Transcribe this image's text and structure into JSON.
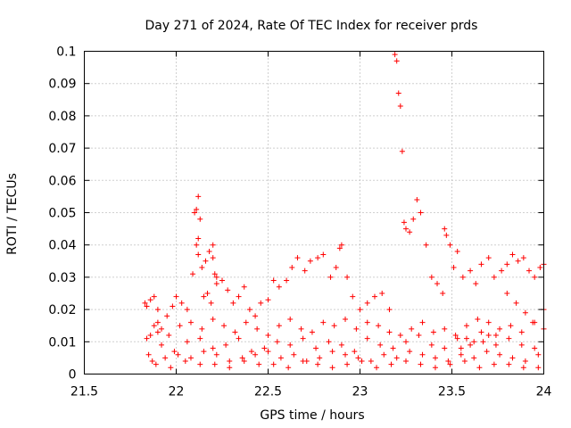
{
  "chart_data": {
    "type": "scatter",
    "title": "Day 271 of 2024, Rate Of TEC Index for receiver prds",
    "xlabel": "GPS time / hours",
    "ylabel": "ROTI / TECUs",
    "xlim": [
      21.5,
      24
    ],
    "ylim": [
      0,
      0.1
    ],
    "xticks": [
      21.5,
      22,
      22.5,
      23,
      23.5,
      24
    ],
    "xtick_labels": [
      "21.5",
      "22",
      "22.5",
      "23",
      "23.5",
      "24"
    ],
    "yticks": [
      0,
      0.01,
      0.02,
      0.03,
      0.04,
      0.05,
      0.06,
      0.07,
      0.08,
      0.09,
      0.1
    ],
    "ytick_labels": [
      "0",
      "0.01",
      "0.02",
      "0.03",
      "0.04",
      "0.05",
      "0.06",
      "0.07",
      "0.08",
      "0.09",
      "0.1"
    ],
    "grid": true,
    "marker": "+",
    "color": "#ff0000",
    "series": [
      {
        "name": "ROTI",
        "x": [
          21.83,
          21.84,
          21.86,
          21.88,
          21.9,
          21.86,
          21.88,
          21.9,
          21.92,
          21.95,
          21.98,
          22.0,
          22.03,
          22.06,
          22.09,
          22.12,
          22.1,
          22.11,
          22.12,
          22.13,
          22.11,
          22.12,
          22.14,
          22.16,
          22.18,
          22.2,
          22.2,
          22.21,
          22.22,
          22.15,
          22.17,
          22.19,
          22.22,
          22.25,
          22.28,
          22.31,
          22.34,
          22.37,
          22.4,
          22.43,
          22.46,
          22.5,
          22.53,
          22.56,
          22.6,
          22.63,
          22.66,
          22.7,
          22.73,
          22.77,
          22.8,
          22.84,
          22.87,
          22.89,
          22.9,
          22.93,
          22.96,
          23.0,
          23.04,
          23.08,
          23.12,
          23.16,
          23.19,
          23.2,
          23.21,
          23.22,
          23.23,
          23.24,
          23.25,
          23.27,
          23.29,
          23.31,
          23.33,
          23.36,
          23.39,
          23.42,
          23.45,
          23.46,
          23.47,
          23.49,
          23.51,
          23.53,
          23.56,
          23.6,
          23.63,
          23.66,
          23.7,
          23.73,
          23.77,
          23.8,
          23.83,
          23.86,
          23.89,
          23.92,
          23.95,
          23.98,
          24.0,
          21.84,
          21.9,
          21.96,
          22.02,
          22.08,
          22.14,
          22.2,
          22.26,
          22.32,
          22.38,
          22.44,
          22.5,
          22.56,
          22.62,
          22.68,
          22.74,
          22.8,
          22.86,
          22.92,
          22.98,
          23.04,
          23.1,
          23.16,
          23.22,
          23.28,
          23.34,
          23.4,
          23.46,
          23.52,
          23.58,
          23.64,
          23.7,
          23.76,
          23.82,
          23.88,
          23.94,
          24.0,
          21.85,
          21.92,
          21.99,
          22.06,
          22.13,
          22.2,
          22.27,
          22.34,
          22.41,
          22.48,
          22.55,
          22.62,
          22.69,
          22.76,
          22.83,
          22.9,
          22.97,
          23.04,
          23.11,
          23.18,
          23.25,
          23.32,
          23.39,
          23.46,
          23.53,
          23.6,
          23.67,
          23.74,
          23.81,
          23.88,
          23.95,
          21.87,
          21.94,
          22.01,
          22.08,
          22.15,
          22.22,
          22.29,
          22.36,
          22.43,
          22.5,
          22.57,
          22.64,
          22.71,
          22.78,
          22.85,
          22.92,
          22.99,
          23.06,
          23.13,
          23.2,
          23.27,
          23.34,
          23.41,
          23.48,
          23.55,
          23.62,
          23.69,
          23.76,
          23.83,
          23.9,
          23.97,
          21.89,
          21.97,
          22.05,
          22.13,
          22.21,
          22.29,
          22.37,
          22.45,
          22.53,
          22.61,
          22.69,
          22.77,
          22.85,
          22.93,
          23.01,
          23.09,
          23.17,
          23.25,
          23.33,
          23.41,
          23.49,
          23.57,
          23.65,
          23.73,
          23.81,
          23.89,
          23.97,
          23.8,
          23.85,
          23.9,
          23.95,
          24.0,
          23.55,
          23.58,
          23.62,
          23.66,
          23.7,
          23.74
        ],
        "y": [
          0.022,
          0.021,
          0.023,
          0.024,
          0.02,
          0.012,
          0.015,
          0.016,
          0.014,
          0.018,
          0.021,
          0.024,
          0.022,
          0.02,
          0.031,
          0.042,
          0.05,
          0.051,
          0.055,
          0.048,
          0.04,
          0.037,
          0.033,
          0.035,
          0.038,
          0.04,
          0.036,
          0.031,
          0.028,
          0.024,
          0.025,
          0.022,
          0.03,
          0.029,
          0.026,
          0.022,
          0.024,
          0.027,
          0.02,
          0.018,
          0.022,
          0.023,
          0.029,
          0.027,
          0.029,
          0.033,
          0.036,
          0.032,
          0.035,
          0.036,
          0.037,
          0.03,
          0.033,
          0.039,
          0.04,
          0.03,
          0.024,
          0.02,
          0.022,
          0.024,
          0.025,
          0.02,
          0.099,
          0.097,
          0.087,
          0.083,
          0.069,
          0.047,
          0.045,
          0.044,
          0.048,
          0.054,
          0.05,
          0.04,
          0.03,
          0.028,
          0.025,
          0.045,
          0.043,
          0.04,
          0.033,
          0.038,
          0.03,
          0.032,
          0.028,
          0.034,
          0.036,
          0.03,
          0.032,
          0.034,
          0.037,
          0.035,
          0.036,
          0.032,
          0.03,
          0.033,
          0.034,
          0.011,
          0.013,
          0.012,
          0.015,
          0.016,
          0.014,
          0.017,
          0.015,
          0.013,
          0.016,
          0.014,
          0.012,
          0.015,
          0.017,
          0.014,
          0.013,
          0.016,
          0.015,
          0.017,
          0.014,
          0.016,
          0.015,
          0.013,
          0.012,
          0.014,
          0.016,
          0.013,
          0.014,
          0.012,
          0.015,
          0.017,
          0.016,
          0.014,
          0.015,
          0.013,
          0.016,
          0.014,
          0.006,
          0.009,
          0.007,
          0.01,
          0.011,
          0.008,
          0.009,
          0.011,
          0.007,
          0.008,
          0.01,
          0.009,
          0.011,
          0.008,
          0.01,
          0.009,
          0.007,
          0.011,
          0.009,
          0.008,
          0.01,
          0.012,
          0.009,
          0.008,
          0.011,
          0.009,
          0.01,
          0.012,
          0.011,
          0.009,
          0.008,
          0.004,
          0.005,
          0.006,
          0.005,
          0.007,
          0.006,
          0.004,
          0.005,
          0.006,
          0.007,
          0.005,
          0.006,
          0.004,
          0.005,
          0.007,
          0.006,
          0.005,
          0.004,
          0.006,
          0.005,
          0.007,
          0.006,
          0.005,
          0.004,
          0.006,
          0.005,
          0.007,
          0.006,
          0.005,
          0.004,
          0.006,
          0.003,
          0.002,
          0.004,
          0.003,
          0.003,
          0.002,
          0.004,
          0.003,
          0.003,
          0.002,
          0.004,
          0.003,
          0.002,
          0.003,
          0.004,
          0.002,
          0.003,
          0.004,
          0.003,
          0.002,
          0.003,
          0.004,
          0.002,
          0.003,
          0.003,
          0.002,
          0.002,
          0.025,
          0.022,
          0.019,
          0.016,
          0.02,
          0.008,
          0.011,
          0.01,
          0.013,
          0.012,
          0.009
        ]
      }
    ]
  }
}
